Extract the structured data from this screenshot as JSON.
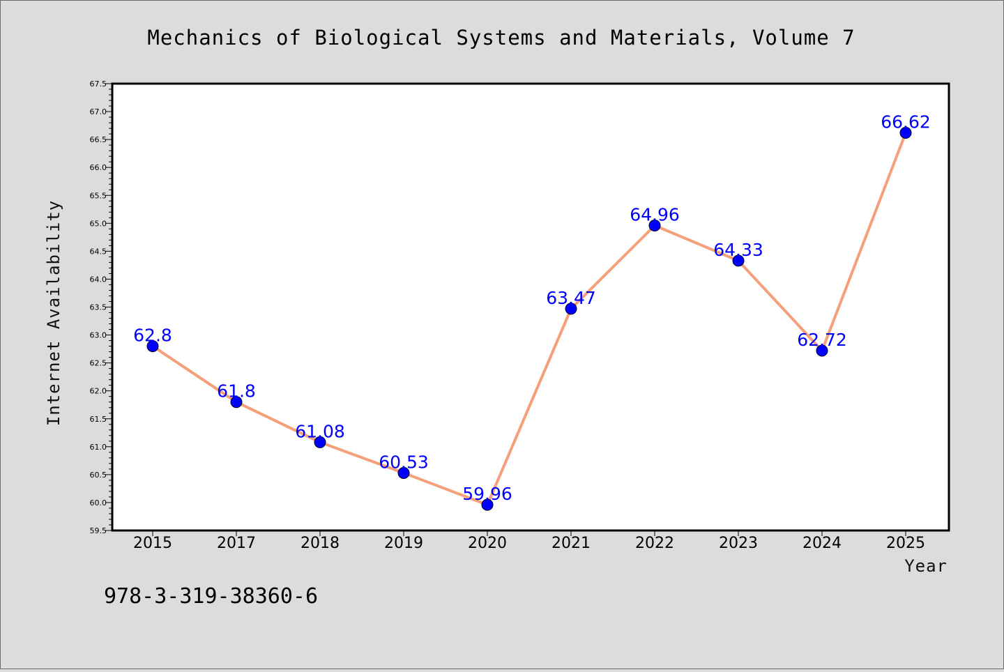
{
  "chart_data": {
    "type": "line",
    "title": "Mechanics of Biological Systems and Materials, Volume 7",
    "xlabel": "Year",
    "ylabel": "Internet Availability",
    "categories": [
      "2015",
      "2017",
      "2018",
      "2019",
      "2020",
      "2021",
      "2022",
      "2023",
      "2024",
      "2025"
    ],
    "series": [
      {
        "values": [
          62.8,
          61.8,
          61.08,
          60.53,
          59.96,
          63.47,
          64.96,
          64.33,
          62.72,
          66.62
        ],
        "data_labels": [
          "62.8",
          "61.8",
          "61.08",
          "60.53",
          "59.96",
          "63.47",
          "64.96",
          "64.33",
          "62.72",
          "66.62"
        ],
        "line_color": "#f4a07a",
        "marker_color": "#0000ff"
      }
    ],
    "ylim": [
      59.5,
      67.5
    ],
    "yticks": [
      "59.5",
      "60.0",
      "60.5",
      "61.0",
      "61.5",
      "62.0",
      "62.5",
      "63.0",
      "63.5",
      "64.0",
      "64.5",
      "65.0",
      "65.5",
      "66.0",
      "66.5",
      "67.0",
      "67.5"
    ],
    "grid": false,
    "legend": "none",
    "label_color": "#0000ff"
  },
  "footer": {
    "isbn": "978-3-319-38360-6"
  }
}
